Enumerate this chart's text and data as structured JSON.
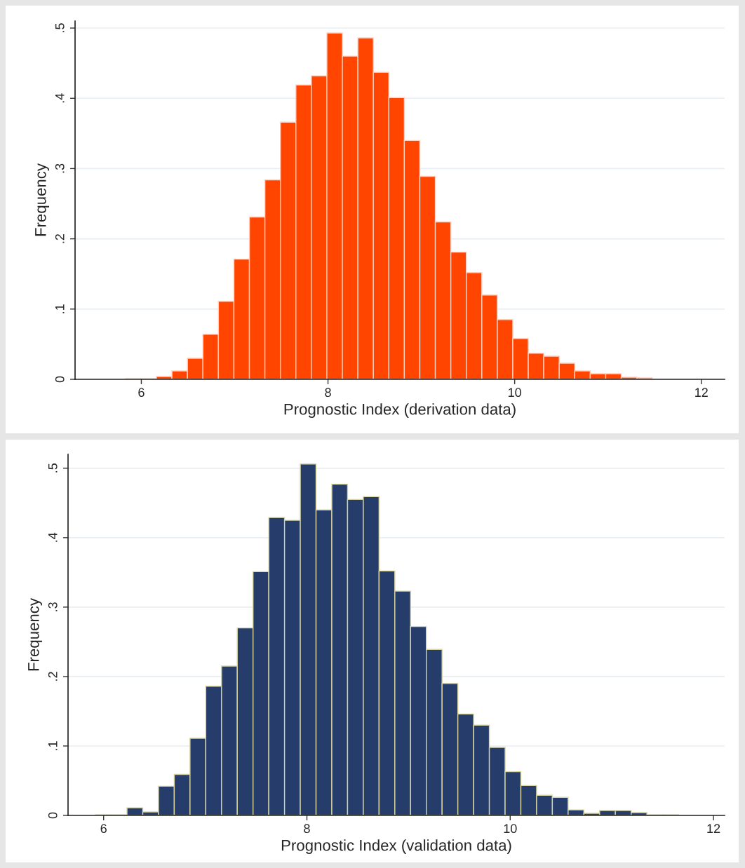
{
  "chart_data": [
    {
      "type": "histogram",
      "xlabel": "Prognostic Index (derivation data)",
      "ylabel": "Frequency",
      "color": "#ff4500",
      "grid": "y",
      "bins": [
        5.83,
        5.996,
        6.162,
        6.328,
        6.494,
        6.66,
        6.826,
        6.992,
        7.158,
        7.324,
        7.49,
        7.656,
        7.822,
        7.988,
        8.154,
        8.32,
        8.486,
        8.652,
        8.818,
        8.984,
        9.15,
        9.316,
        9.482,
        9.648,
        9.814,
        9.98,
        10.146,
        10.312,
        10.478,
        10.644,
        10.81,
        10.976,
        11.142,
        11.308,
        11.474
      ],
      "values": [
        0.001,
        0.001,
        0.004,
        0.012,
        0.03,
        0.064,
        0.111,
        0.171,
        0.231,
        0.284,
        0.366,
        0.419,
        0.432,
        0.493,
        0.46,
        0.486,
        0.437,
        0.401,
        0.34,
        0.289,
        0.224,
        0.181,
        0.152,
        0.12,
        0.085,
        0.058,
        0.037,
        0.033,
        0.023,
        0.012,
        0.008,
        0.008,
        0.003,
        0.002
      ],
      "xlim": [
        5.29,
        12.25
      ],
      "xticks": [
        6,
        8,
        10,
        12
      ],
      "ylim": [
        0,
        0.51
      ],
      "yticks": [
        0,
        {
          "value": 0.1,
          "label": ".1"
        },
        {
          "value": 0.2,
          "label": ".2"
        },
        {
          "value": 0.3,
          "label": ".3"
        },
        {
          "value": 0.4,
          "label": ".4"
        },
        {
          "value": 0.5,
          "label": ".5"
        }
      ]
    },
    {
      "type": "histogram",
      "xlabel": "Prognostic Index (validation data)",
      "ylabel": "Frequency",
      "color": "#263d6b",
      "grid": "y",
      "bins": [
        5.92,
        6.075,
        6.23,
        6.385,
        6.54,
        6.695,
        6.85,
        7.005,
        7.16,
        7.315,
        7.47,
        7.625,
        7.78,
        7.935,
        8.09,
        8.245,
        8.4,
        8.555,
        8.71,
        8.865,
        9.02,
        9.175,
        9.33,
        9.485,
        9.64,
        9.795,
        9.95,
        10.105,
        10.26,
        10.415,
        10.57,
        10.725,
        10.88,
        11.035,
        11.19,
        11.345,
        11.5,
        11.655
      ],
      "values": [
        0.001,
        0.001,
        0.011,
        0.005,
        0.042,
        0.059,
        0.111,
        0.186,
        0.215,
        0.27,
        0.351,
        0.429,
        0.425,
        0.506,
        0.44,
        0.477,
        0.455,
        0.459,
        0.352,
        0.323,
        0.272,
        0.239,
        0.19,
        0.146,
        0.13,
        0.098,
        0.063,
        0.043,
        0.029,
        0.026,
        0.008,
        0.003,
        0.007,
        0.007,
        0.004,
        0.001,
        0.001
      ],
      "xlim": [
        5.65,
        12.11
      ],
      "xticks": [
        6,
        8,
        10,
        12
      ],
      "ylim": [
        0,
        0.52
      ],
      "yticks": [
        0,
        {
          "value": 0.1,
          "label": ".1"
        },
        {
          "value": 0.2,
          "label": ".2"
        },
        {
          "value": 0.3,
          "label": ".3"
        },
        {
          "value": 0.4,
          "label": ".4"
        },
        {
          "value": 0.5,
          "label": ".5"
        }
      ]
    }
  ]
}
